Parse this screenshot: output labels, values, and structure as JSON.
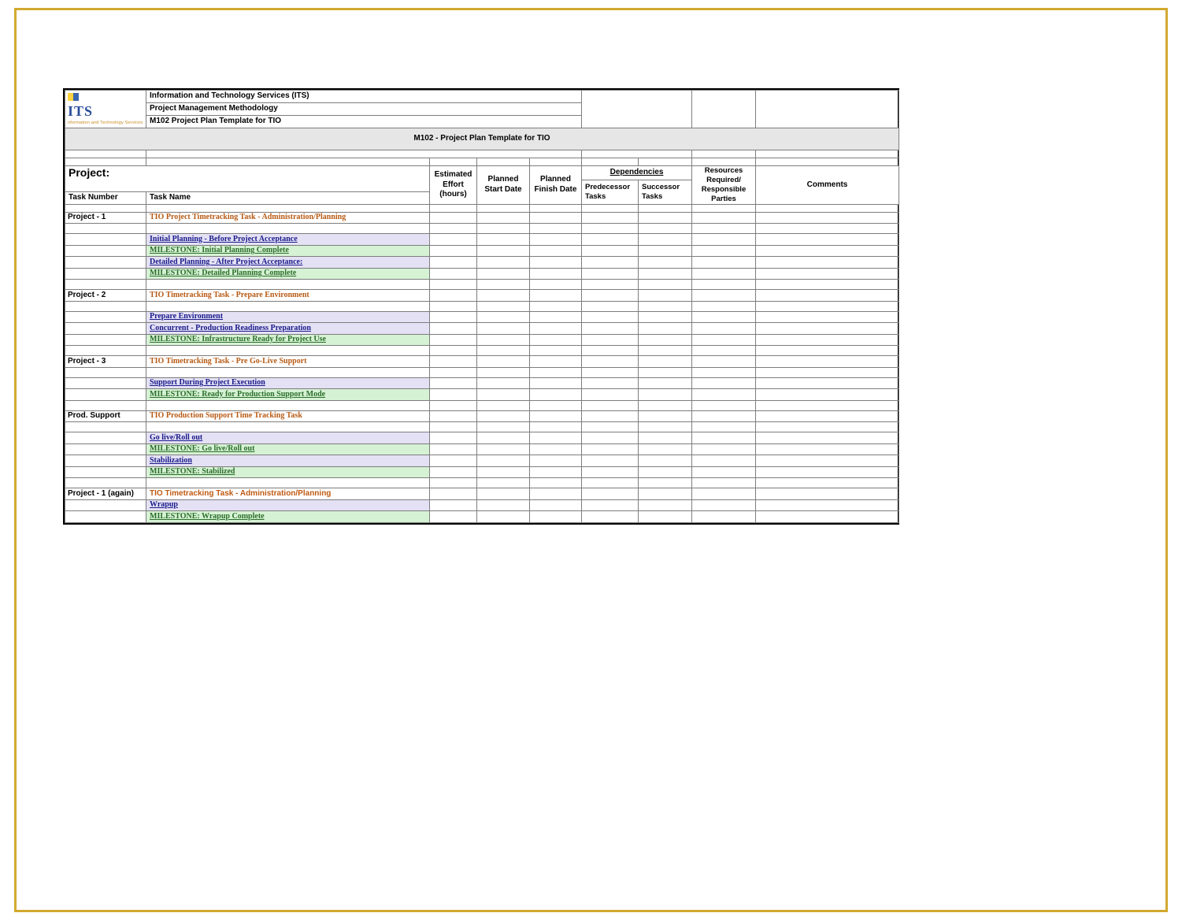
{
  "frame": {
    "border_color": "#d2a92f",
    "border_width": 3
  },
  "logo": {
    "text": "ITS",
    "subtext": "nformation and Technology Services",
    "color_primary": "#2b4f9a",
    "color_accent": "#c68a1d"
  },
  "org": {
    "line1": "Information and Technology Services (ITS)",
    "line2": "Project Management Methodology",
    "line3": "M102 Project Plan Template for TIO"
  },
  "title_band": "M102 - Project Plan Template for TIO",
  "project_label": "Project:",
  "columns": {
    "task_number": "Task Number",
    "task_name": "Task Name",
    "effort": "Estimated Effort (hours)",
    "start": "Planned Start Date",
    "finish": "Planned Finish Date",
    "dependencies": "Dependencies",
    "predecessor": "Predecessor Tasks",
    "successor": "Successor Tasks",
    "resources": "Resources Required/ Responsible Parties",
    "comments": "Comments"
  },
  "rows": [
    {
      "type": "section",
      "num": "Project - 1",
      "name": "TIO Project Timetracking Task - Administration/Planning",
      "style": "serif"
    },
    {
      "type": "spacer"
    },
    {
      "type": "task",
      "name": "Initial Planning - Before Project Acceptance",
      "bg": "lav"
    },
    {
      "type": "milestone",
      "name": "MILESTONE: Initial Planning Complete",
      "bg": "grn"
    },
    {
      "type": "task",
      "name": "Detailed Planning - After Project Acceptance:",
      "bg": "lav"
    },
    {
      "type": "milestone",
      "name": "MILESTONE: Detailed Planning Complete",
      "bg": "grn"
    },
    {
      "type": "spacer"
    },
    {
      "type": "section",
      "num": "Project - 2",
      "name": "TIO Timetracking Task - Prepare Environment",
      "style": "serif",
      "tall": true
    },
    {
      "type": "spacer"
    },
    {
      "type": "task",
      "name": "Prepare Environment",
      "bg": "lav"
    },
    {
      "type": "task",
      "name": "Concurrent - Production Readiness Preparation",
      "bg": "lav"
    },
    {
      "type": "milestone",
      "name": "MILESTONE: Infrastructure Ready for Project Use",
      "bg": "grn"
    },
    {
      "type": "spacer"
    },
    {
      "type": "section",
      "num": "Project - 3",
      "name": "TIO Timetracking Task - Pre Go-Live Support",
      "style": "serif",
      "tall": true
    },
    {
      "type": "spacer"
    },
    {
      "type": "task",
      "name": "Support During Project Execution",
      "bg": "lav"
    },
    {
      "type": "milestone",
      "name": "MILESTONE: Ready for Production Support Mode",
      "bg": "grn"
    },
    {
      "type": "spacer"
    },
    {
      "type": "section",
      "num": "Prod. Support",
      "name": "TIO Production Support Time Tracking Task",
      "style": "serif",
      "tall": true
    },
    {
      "type": "spacer"
    },
    {
      "type": "task",
      "name": "Go live/Roll out",
      "bg": "lav"
    },
    {
      "type": "milestone",
      "name": "MILESTONE: Go live/Roll out",
      "bg": "grn"
    },
    {
      "type": "task",
      "name": "Stabilization",
      "bg": "lav"
    },
    {
      "type": "milestone",
      "name": "MILESTONE: Stabilized",
      "bg": "grn"
    },
    {
      "type": "spacer"
    },
    {
      "type": "section",
      "num": "Project - 1 (again)",
      "name": "TIO Timetracking Task - Administration/Planning",
      "style": "sans",
      "htall": true
    },
    {
      "type": "task",
      "name": "Wrapup",
      "bg": "lav"
    },
    {
      "type": "milestone",
      "name": "MILESTONE: Wrapup Complete",
      "bg": "grn"
    }
  ],
  "styling": {
    "section_color": "#b75a14",
    "task_link_color": "#1a1a8a",
    "milestone_color": "#2b6e2b",
    "bg_lavender": "#e4e1f5",
    "bg_green": "#d6f2d4",
    "grid_color": "#7d7d7d",
    "title_band_bg": "#e6e6e6"
  }
}
